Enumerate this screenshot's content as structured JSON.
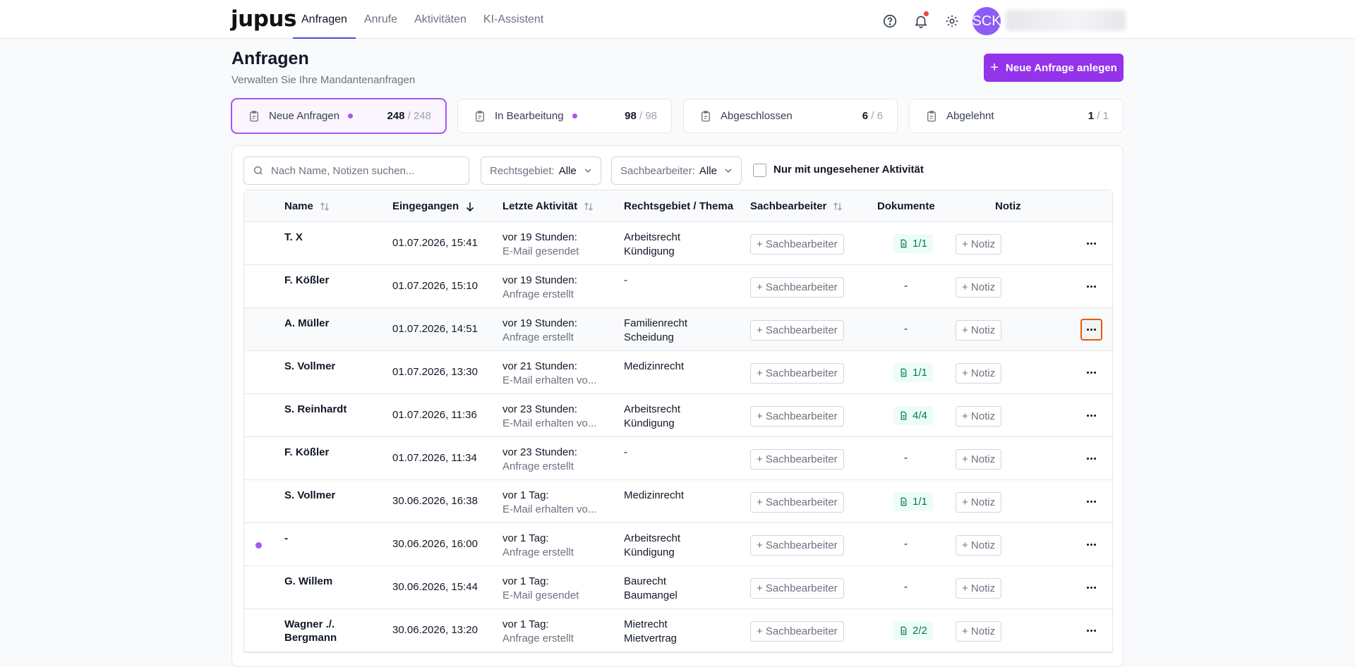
{
  "app": {
    "logo": "jupus"
  },
  "nav": {
    "items": [
      {
        "label": "Anfragen",
        "active": true
      },
      {
        "label": "Anrufe",
        "active": false
      },
      {
        "label": "Aktivitäten",
        "active": false
      },
      {
        "label": "KI-Assistent",
        "active": false
      }
    ]
  },
  "user": {
    "initials": "SCK"
  },
  "header": {
    "title": "Anfragen",
    "subtitle": "Verwalten Sie Ihre Mandantenanfragen",
    "new_button": "Neue Anfrage anlegen"
  },
  "status_cards": [
    {
      "label": "Neue Anfragen",
      "count": "248",
      "total": " / 248",
      "dot": true,
      "active": true
    },
    {
      "label": "In Bearbeitung",
      "count": "98",
      "total": " / 98",
      "dot": true,
      "active": false
    },
    {
      "label": "Abgeschlossen",
      "count": "6",
      "total": " / 6",
      "dot": false,
      "active": false
    },
    {
      "label": "Abgelehnt",
      "count": "1",
      "total": " / 1",
      "dot": false,
      "active": false
    }
  ],
  "filters": {
    "search_placeholder": "Nach Name, Notizen suchen...",
    "rechtsgebiet_label": "Rechtsgebiet:",
    "rechtsgebiet_value": "Alle",
    "sachbearbeiter_label": "Sachbearbeiter:",
    "sachbearbeiter_value": "Alle",
    "checkbox_label": "Nur mit ungesehener Aktivität"
  },
  "table": {
    "headers": {
      "name": "Name",
      "eingegangen": "Eingegangen",
      "aktivitaet": "Letzte Aktivität",
      "rechtsgebiet": "Rechtsgebiet / Thema",
      "sachbearbeiter": "Sachbearbeiter",
      "dokumente": "Dokumente",
      "notiz": "Notiz"
    },
    "sb_button": "+ Sachbearbeiter",
    "note_button": "+ Notiz",
    "rows": [
      {
        "name": "T. X",
        "date": "01.07.2026, 15:41",
        "akt1": "vor 19 Stunden:",
        "akt2": "E-Mail gesendet",
        "rg1": "Arbeitsrecht",
        "rg2": "Kündigung",
        "docs": "1/1",
        "unread": false
      },
      {
        "name": "F. Kößler",
        "date": "01.07.2026, 15:10",
        "akt1": "vor 19 Stunden:",
        "akt2": "Anfrage erstellt",
        "rg1": "-",
        "rg2": "",
        "docs": "-",
        "unread": false
      },
      {
        "name": "A. Müller",
        "date": "01.07.2026, 14:51",
        "akt1": "vor 19 Stunden:",
        "akt2": "Anfrage erstellt",
        "rg1": "Familienrecht",
        "rg2": "Scheidung",
        "docs": "-",
        "unread": false
      },
      {
        "name": "S. Vollmer",
        "date": "01.07.2026, 13:30",
        "akt1": "vor 21 Stunden:",
        "akt2": "E-Mail erhalten vo...",
        "rg1": "Medizinrecht",
        "rg2": "",
        "docs": "1/1",
        "unread": false
      },
      {
        "name": "S. Reinhardt",
        "date": "01.07.2026, 11:36",
        "akt1": "vor 23 Stunden:",
        "akt2": "E-Mail erhalten vo...",
        "rg1": "Arbeitsrecht",
        "rg2": "Kündigung",
        "docs": "4/4",
        "unread": false
      },
      {
        "name": "F. Kößler",
        "date": "01.07.2026, 11:34",
        "akt1": "vor 23 Stunden:",
        "akt2": "Anfrage erstellt",
        "rg1": "-",
        "rg2": "",
        "docs": "-",
        "unread": false
      },
      {
        "name": "S. Vollmer",
        "date": "30.06.2026, 16:38",
        "akt1": "vor 1 Tag:",
        "akt2": "E-Mail erhalten vo...",
        "rg1": "Medizinrecht",
        "rg2": "",
        "docs": "1/1",
        "unread": false
      },
      {
        "name": "-",
        "date": "30.06.2026, 16:00",
        "akt1": "vor 1 Tag:",
        "akt2": "Anfrage erstellt",
        "rg1": "Arbeitsrecht",
        "rg2": "Kündigung",
        "docs": "-",
        "unread": true
      },
      {
        "name": "G. Willem",
        "date": "30.06.2026, 15:44",
        "akt1": "vor 1 Tag:",
        "akt2": "E-Mail gesendet",
        "rg1": "Baurecht",
        "rg2": "Baumangel",
        "docs": "-",
        "unread": false
      },
      {
        "name": "Wagner ./. Bergmann",
        "date": "30.06.2026, 13:20",
        "akt1": "vor 1 Tag:",
        "akt2": "Anfrage erstellt",
        "rg1": "Mietrecht",
        "rg2": "Mietvertrag",
        "docs": "2/2",
        "unread": false
      }
    ]
  }
}
